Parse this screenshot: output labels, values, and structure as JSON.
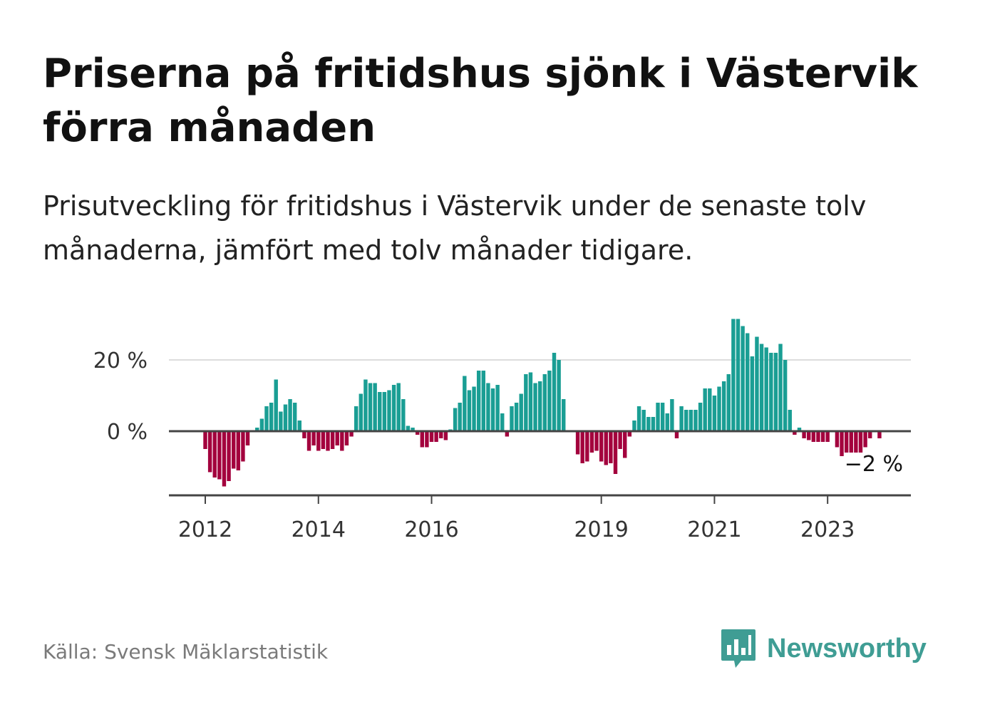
{
  "title": "Priserna på fritidshus sjönk i Västervik förra månaden",
  "subtitle": "Prisutveckling för fritidshus i Västervik under de senaste tolv månaderna, jämfört med tolv månader tidigare.",
  "source": "Källa: Svensk Mäklarstatistik",
  "brand": {
    "name": "Newsworthy",
    "logo_icon": "bar-chart-speech-icon",
    "color": "#3f9d94"
  },
  "chart_data": {
    "type": "bar",
    "title": "Priserna på fritidshus sjönk i Västervik förra månaden",
    "xlabel": "",
    "ylabel": "",
    "ylim": [
      -18,
      32
    ],
    "yticks": [
      {
        "value": 0,
        "label": "0 %"
      },
      {
        "value": 20,
        "label": "20 %"
      }
    ],
    "xticks": [
      {
        "index": 0,
        "label": "2012"
      },
      {
        "index": 24,
        "label": "2014"
      },
      {
        "index": 48,
        "label": "2016"
      },
      {
        "index": 84,
        "label": "2019"
      },
      {
        "index": 108,
        "label": "2021"
      },
      {
        "index": 132,
        "label": "2023"
      }
    ],
    "start_month": "2012-01",
    "positive_color": "#1a9e94",
    "negative_color": "#a3003d",
    "values": [
      -5,
      -11.5,
      -13,
      -13.5,
      -15.5,
      -14,
      -10.5,
      -11,
      -8.5,
      -4,
      0,
      1,
      3.5,
      7,
      8,
      14.5,
      5.5,
      7.5,
      9,
      8,
      3,
      -2,
      -5.5,
      -4,
      -5.5,
      -5,
      -5.5,
      -5,
      -4,
      -5.5,
      -4,
      -1.5,
      7,
      10.5,
      14.5,
      13.5,
      13.5,
      11,
      11,
      11.5,
      13,
      13.5,
      9,
      1.5,
      1,
      -1,
      -4.5,
      -4.5,
      -3,
      -3,
      -2,
      -2.5,
      0.5,
      6.5,
      8,
      15.5,
      11.5,
      12.5,
      17,
      17,
      13.5,
      12,
      13,
      5,
      -1.5,
      7,
      8,
      10.5,
      16,
      16.5,
      13.5,
      14,
      16,
      17,
      22,
      20,
      9,
      0,
      0,
      -6.5,
      -9,
      -8.5,
      -6,
      -5.5,
      -8.5,
      -9.5,
      -9,
      -12,
      -5,
      -7.5,
      -1.5,
      3,
      7,
      6,
      4,
      4,
      8,
      8,
      5,
      9,
      -2,
      7,
      6,
      6,
      6,
      8,
      12,
      12,
      10,
      12.5,
      14,
      16,
      31.5,
      31.5,
      29.5,
      27.5,
      21,
      26.5,
      24.5,
      23.5,
      22,
      22,
      24.5,
      20,
      6,
      -1,
      1,
      -2,
      -2.5,
      -3,
      -3,
      -3,
      -3,
      0,
      -4.5,
      -7,
      -6,
      -6,
      -6,
      -6,
      -4.5,
      -2,
      0,
      -2
    ],
    "end_label": "−2 %"
  }
}
